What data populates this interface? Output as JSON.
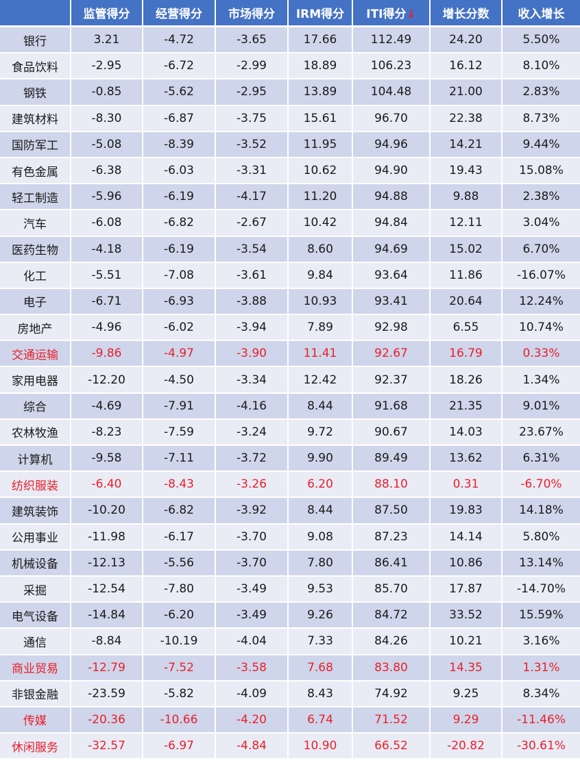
{
  "table": {
    "headers": [
      "",
      "监管得分",
      "经营得分",
      "市场得分",
      "IRM得分",
      "ITI得分",
      "增长分数",
      "收入增长"
    ],
    "sort_indicator": "↓",
    "sort_column": "ITI得分",
    "highlight_color": "#e8202a",
    "header_color": "#4472c4",
    "rows": [
      {
        "name": "银行",
        "values": [
          "3.21",
          "-4.72",
          "-3.65",
          "17.66",
          "112.49",
          "24.20",
          "5.50%"
        ],
        "highlight": false
      },
      {
        "name": "食品饮料",
        "values": [
          "-2.95",
          "-6.72",
          "-2.99",
          "18.89",
          "106.23",
          "16.12",
          "8.10%"
        ],
        "highlight": false
      },
      {
        "name": "钢铁",
        "values": [
          "-0.85",
          "-5.62",
          "-2.95",
          "13.89",
          "104.48",
          "21.00",
          "2.83%"
        ],
        "highlight": false
      },
      {
        "name": "建筑材料",
        "values": [
          "-8.30",
          "-6.87",
          "-3.75",
          "15.61",
          "96.70",
          "22.38",
          "8.73%"
        ],
        "highlight": false
      },
      {
        "name": "国防军工",
        "values": [
          "-5.08",
          "-8.39",
          "-3.52",
          "11.95",
          "94.96",
          "14.21",
          "9.44%"
        ],
        "highlight": false
      },
      {
        "name": "有色金属",
        "values": [
          "-6.38",
          "-6.03",
          "-3.31",
          "10.62",
          "94.90",
          "19.43",
          "15.08%"
        ],
        "highlight": false
      },
      {
        "name": "轻工制造",
        "values": [
          "-5.96",
          "-6.19",
          "-4.17",
          "11.20",
          "94.88",
          "9.88",
          "2.38%"
        ],
        "highlight": false
      },
      {
        "name": "汽车",
        "values": [
          "-6.08",
          "-6.82",
          "-2.67",
          "10.42",
          "94.84",
          "12.11",
          "3.04%"
        ],
        "highlight": false
      },
      {
        "name": "医药生物",
        "values": [
          "-4.18",
          "-6.19",
          "-3.54",
          "8.60",
          "94.69",
          "15.02",
          "6.70%"
        ],
        "highlight": false
      },
      {
        "name": "化工",
        "values": [
          "-5.51",
          "-7.08",
          "-3.61",
          "9.84",
          "93.64",
          "11.86",
          "-16.07%"
        ],
        "highlight": false
      },
      {
        "name": "电子",
        "values": [
          "-6.71",
          "-6.93",
          "-3.88",
          "10.93",
          "93.41",
          "20.64",
          "12.24%"
        ],
        "highlight": false
      },
      {
        "name": "房地产",
        "values": [
          "-4.96",
          "-6.02",
          "-3.94",
          "7.89",
          "92.98",
          "6.55",
          "10.74%"
        ],
        "highlight": false
      },
      {
        "name": "交通运输",
        "values": [
          "-9.86",
          "-4.97",
          "-3.90",
          "11.41",
          "92.67",
          "16.79",
          "0.33%"
        ],
        "highlight": true
      },
      {
        "name": "家用电器",
        "values": [
          "-12.20",
          "-4.50",
          "-3.34",
          "12.42",
          "92.37",
          "18.26",
          "1.34%"
        ],
        "highlight": false
      },
      {
        "name": "综合",
        "values": [
          "-4.69",
          "-7.91",
          "-4.16",
          "8.44",
          "91.68",
          "21.35",
          "9.01%"
        ],
        "highlight": false
      },
      {
        "name": "农林牧渔",
        "values": [
          "-8.23",
          "-7.59",
          "-3.24",
          "9.72",
          "90.67",
          "14.03",
          "23.67%"
        ],
        "highlight": false
      },
      {
        "name": "计算机",
        "values": [
          "-9.58",
          "-7.11",
          "-3.72",
          "9.90",
          "89.49",
          "13.62",
          "6.31%"
        ],
        "highlight": false
      },
      {
        "name": "纺织服装",
        "values": [
          "-6.40",
          "-8.43",
          "-3.26",
          "6.20",
          "88.10",
          "0.31",
          "-6.70%"
        ],
        "highlight": true
      },
      {
        "name": "建筑装饰",
        "values": [
          "-10.20",
          "-6.82",
          "-3.92",
          "8.44",
          "87.50",
          "19.83",
          "14.18%"
        ],
        "highlight": false
      },
      {
        "name": "公用事业",
        "values": [
          "-11.98",
          "-6.17",
          "-3.70",
          "9.08",
          "87.23",
          "14.14",
          "5.80%"
        ],
        "highlight": false
      },
      {
        "name": "机械设备",
        "values": [
          "-12.13",
          "-5.56",
          "-3.70",
          "7.80",
          "86.41",
          "10.86",
          "13.14%"
        ],
        "highlight": false
      },
      {
        "name": "采掘",
        "values": [
          "-12.54",
          "-7.80",
          "-3.49",
          "9.53",
          "85.70",
          "17.87",
          "-14.70%"
        ],
        "highlight": false
      },
      {
        "name": "电气设备",
        "values": [
          "-14.84",
          "-6.20",
          "-3.49",
          "9.26",
          "84.72",
          "33.52",
          "15.59%"
        ],
        "highlight": false
      },
      {
        "name": "通信",
        "values": [
          "-8.84",
          "-10.19",
          "-4.04",
          "7.33",
          "84.26",
          "10.21",
          "3.16%"
        ],
        "highlight": false
      },
      {
        "name": "商业贸易",
        "values": [
          "-12.79",
          "-7.52",
          "-3.58",
          "7.68",
          "83.80",
          "14.35",
          "1.31%"
        ],
        "highlight": true
      },
      {
        "name": "非银金融",
        "values": [
          "-23.59",
          "-5.82",
          "-4.09",
          "8.43",
          "74.92",
          "9.25",
          "8.34%"
        ],
        "highlight": false
      },
      {
        "name": "传媒",
        "values": [
          "-20.36",
          "-10.66",
          "-4.20",
          "6.74",
          "71.52",
          "9.29",
          "-11.46%"
        ],
        "highlight": true
      },
      {
        "name": "休闲服务",
        "values": [
          "-32.57",
          "-6.97",
          "-4.84",
          "10.90",
          "66.52",
          "-20.82",
          "-30.61%"
        ],
        "highlight": true
      }
    ]
  }
}
